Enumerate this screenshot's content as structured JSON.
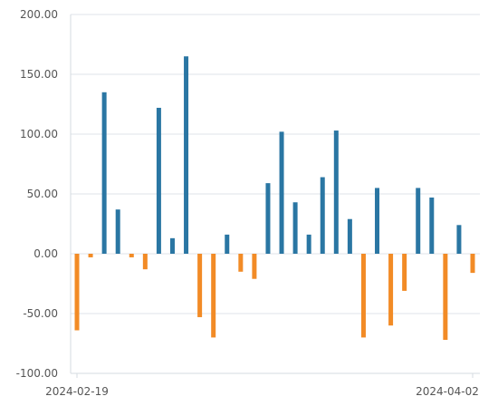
{
  "chart_data": {
    "type": "bar",
    "x_start_label": "2024-02-19",
    "x_end_label": "2024-04-02",
    "y_ticks": [
      "200.00",
      "150.00",
      "100.00",
      "50.00",
      "0.00",
      "-50.00",
      "-100.00"
    ],
    "ylim": [
      -100,
      200
    ],
    "grid": true,
    "colors": {
      "positive": "#2a76a3",
      "negative": "#f28b26"
    },
    "values": [
      -64,
      -3,
      135,
      37,
      -3,
      -13,
      122,
      13,
      165,
      -53,
      -70,
      16,
      -15,
      -21,
      59,
      102,
      43,
      16,
      64,
      103,
      29,
      -70,
      55,
      -60,
      -31,
      55,
      47,
      -72,
      24,
      -16
    ]
  }
}
